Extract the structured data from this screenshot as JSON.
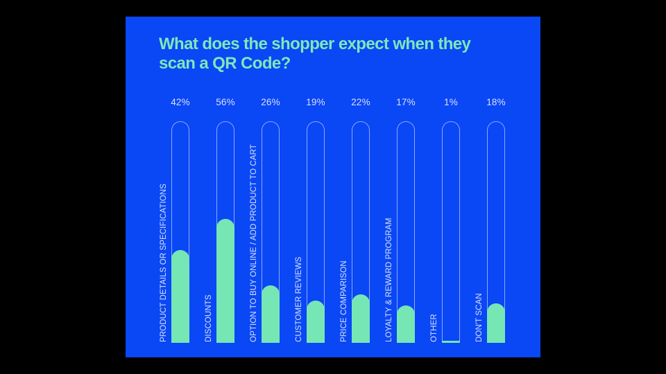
{
  "colors": {
    "background": "#000000",
    "panel": "#0A47F5",
    "title": "#7EE8B8",
    "fill": "#76E6B4",
    "track_outline": "#8EA9FF",
    "text": "#D9E2FF"
  },
  "title": "What does the shopper expect when they scan a QR Code?",
  "bars": [
    {
      "label": "PRODUCT DETAILS OR SPECIFICATIONS",
      "value": 42,
      "pct": "42%"
    },
    {
      "label": "DISCOUNTS",
      "value": 56,
      "pct": "56%"
    },
    {
      "label": "OPTION TO BUY ONLINE / ADD PRODUCT TO CART",
      "value": 26,
      "pct": "26%"
    },
    {
      "label": "CUSTOMER REVIEWS",
      "value": 19,
      "pct": "19%"
    },
    {
      "label": "PRICE COMPARISON",
      "value": 22,
      "pct": "22%"
    },
    {
      "label": "LOYALTY & REWARD PROGRAM",
      "value": 17,
      "pct": "17%"
    },
    {
      "label": "OTHER",
      "value": 1,
      "pct": "1%"
    },
    {
      "label": "DON'T SCAN",
      "value": 18,
      "pct": "18%"
    }
  ],
  "chart_data": {
    "type": "bar",
    "title": "What does the shopper expect when they scan a QR Code?",
    "categories": [
      "PRODUCT DETAILS OR SPECIFICATIONS",
      "DISCOUNTS",
      "OPTION TO BUY ONLINE / ADD PRODUCT TO CART",
      "CUSTOMER REVIEWS",
      "PRICE COMPARISON",
      "LOYALTY & REWARD PROGRAM",
      "OTHER",
      "DON'T SCAN"
    ],
    "values": [
      42,
      56,
      26,
      19,
      22,
      17,
      1,
      18
    ],
    "unit": "%",
    "xlabel": "",
    "ylabel": "",
    "ylim": [
      0,
      100
    ],
    "grid": false,
    "legend": null,
    "orientation": "vertical",
    "data_labels": [
      "42%",
      "56%",
      "26%",
      "19%",
      "22%",
      "17%",
      "1%",
      "18%"
    ]
  }
}
